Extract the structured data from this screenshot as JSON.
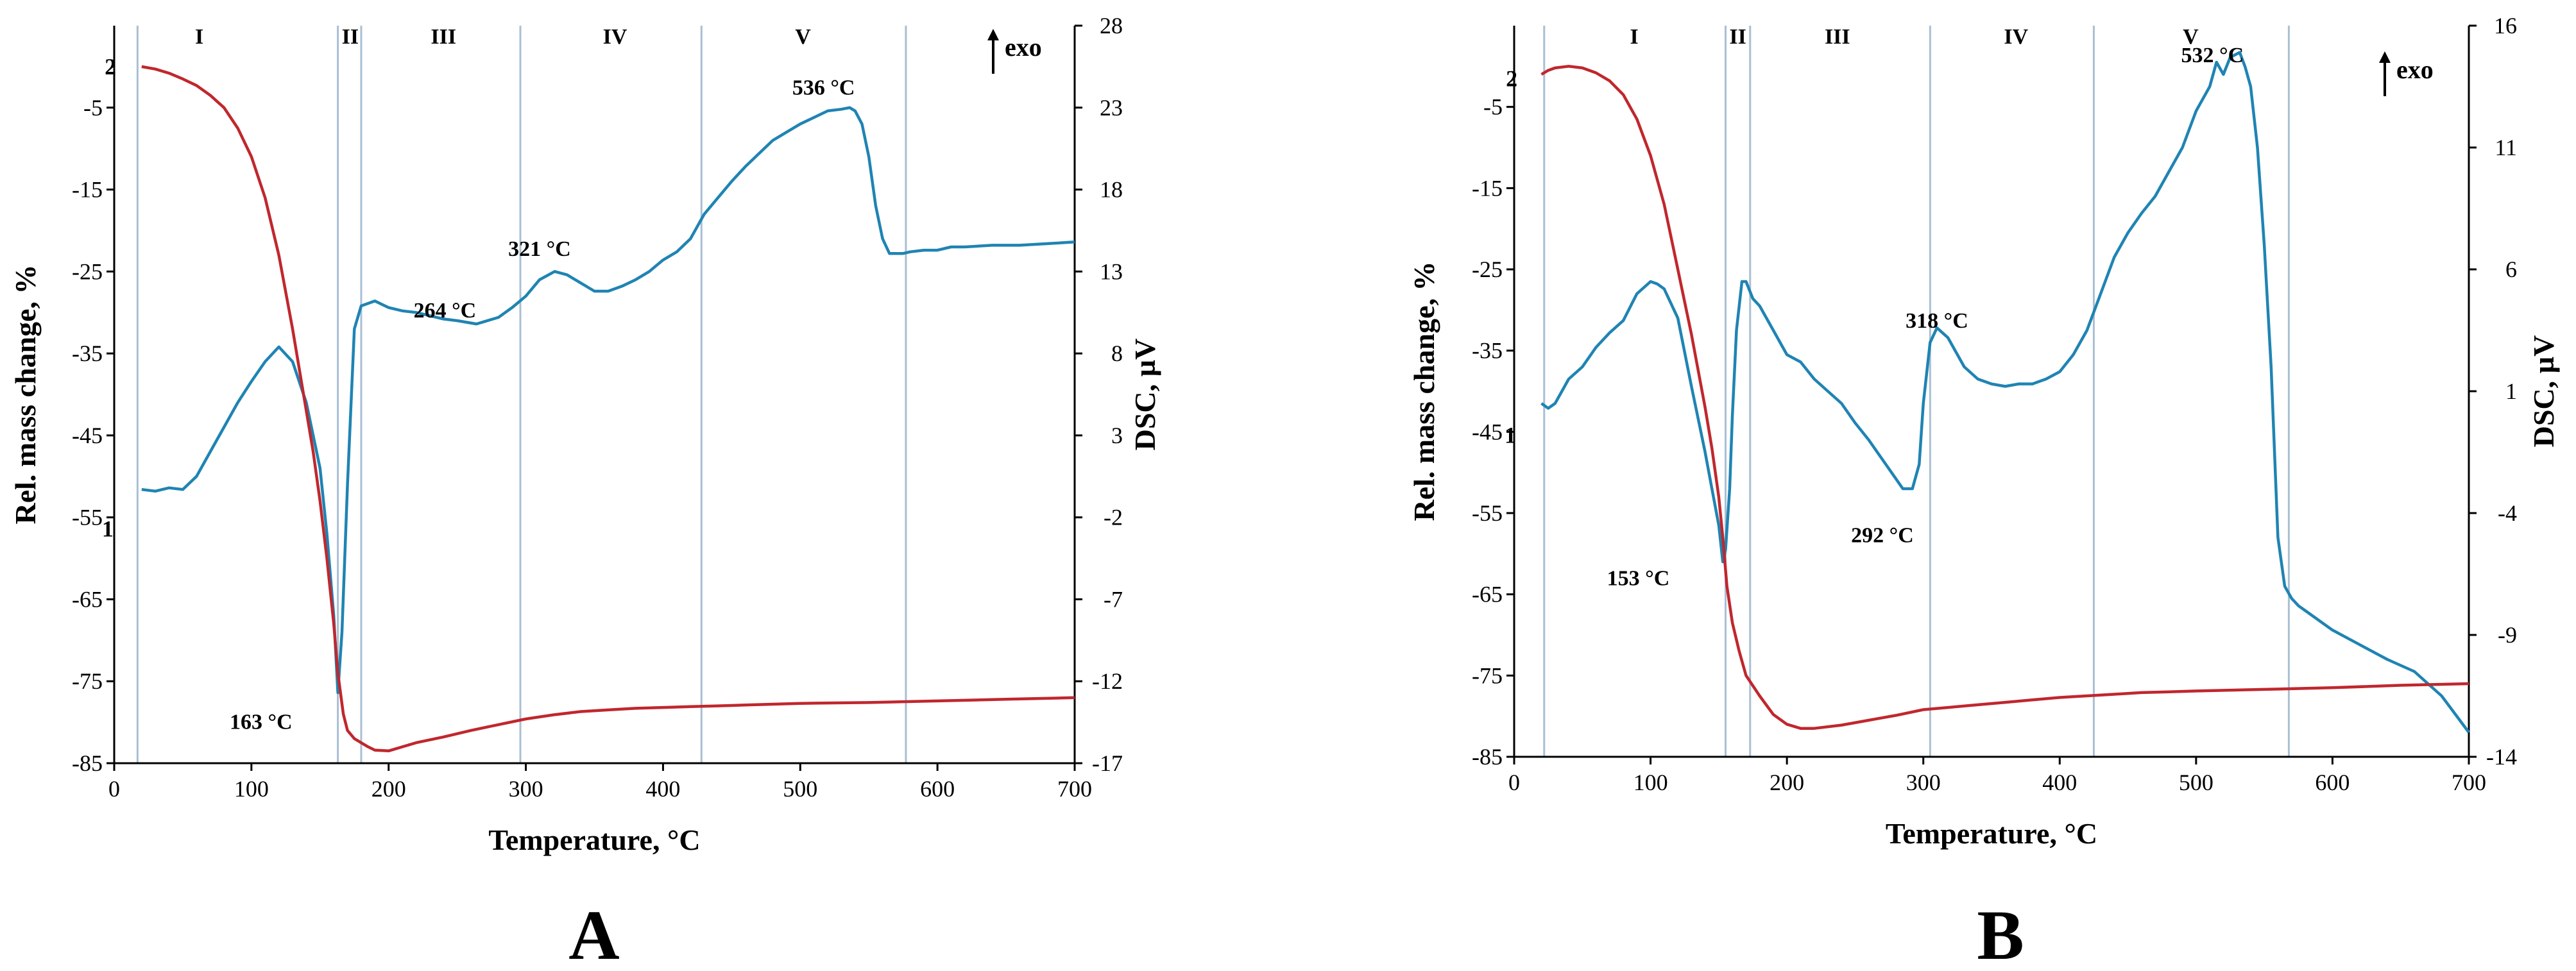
{
  "figure": {
    "panel_labels": [
      "A",
      "B"
    ]
  },
  "colors": {
    "tg": "#c0272d",
    "dsc": "#1f84b3",
    "divider": "#a9bfd4",
    "axis": "#000000"
  },
  "chart_data": [
    {
      "id": "A",
      "type": "line",
      "panel_label": "A",
      "xlabel": "Temperature, °C",
      "ylabel": "Rel. mass change, %",
      "y2label": "DSC, µV",
      "xlim": [
        0,
        700
      ],
      "ylim": [
        -85,
        5
      ],
      "y2lim": [
        -17,
        28
      ],
      "xticks": [
        0,
        100,
        200,
        300,
        400,
        500,
        600,
        700
      ],
      "yticks": [
        -85,
        -75,
        -65,
        -55,
        -45,
        -35,
        -25,
        -15,
        -5
      ],
      "y2ticks": [
        -17,
        -12,
        -7,
        -2,
        3,
        8,
        13,
        18,
        23,
        28
      ],
      "exo_label": "exo",
      "region_boundaries": [
        17,
        163,
        180,
        296,
        428,
        577
      ],
      "regions": [
        {
          "label": "I",
          "x": 62
        },
        {
          "label": "II",
          "x": 172
        },
        {
          "label": "III",
          "x": 240
        },
        {
          "label": "IV",
          "x": 365
        },
        {
          "label": "V",
          "x": 502
        }
      ],
      "series": [
        {
          "name": "1",
          "label": "1",
          "role": "dsc",
          "axis": "y2",
          "label_point": [
            6,
            -2.7
          ],
          "x": [
            20,
            30,
            40,
            50,
            60,
            70,
            80,
            90,
            100,
            110,
            120,
            130,
            140,
            150,
            155,
            160,
            163,
            166,
            170,
            175,
            180,
            190,
            200,
            210,
            220,
            230,
            240,
            250,
            264,
            280,
            290,
            300,
            310,
            321,
            330,
            340,
            350,
            360,
            370,
            380,
            390,
            400,
            410,
            420,
            430,
            440,
            450,
            460,
            470,
            480,
            490,
            500,
            510,
            520,
            530,
            536,
            540,
            545,
            550,
            555,
            560,
            565,
            570,
            575,
            580,
            590,
            600,
            610,
            620,
            640,
            660,
            680,
            700
          ],
          "y": [
            -0.3,
            -0.4,
            -0.2,
            -0.3,
            0.5,
            2.0,
            3.5,
            5.0,
            6.3,
            7.5,
            8.4,
            7.5,
            5.0,
            1.0,
            -3.0,
            -8.0,
            -12.7,
            -9.0,
            0.0,
            9.5,
            10.9,
            11.2,
            10.8,
            10.6,
            10.5,
            10.3,
            10.1,
            10.0,
            9.8,
            10.2,
            10.8,
            11.5,
            12.5,
            13.0,
            12.8,
            12.3,
            11.8,
            11.8,
            12.1,
            12.5,
            13.0,
            13.7,
            14.2,
            15.0,
            16.5,
            17.5,
            18.5,
            19.4,
            20.2,
            21.0,
            21.5,
            22.0,
            22.4,
            22.8,
            22.9,
            23.0,
            22.8,
            22.0,
            20.0,
            17.0,
            15.0,
            14.1,
            14.1,
            14.1,
            14.2,
            14.3,
            14.3,
            14.5,
            14.5,
            14.6,
            14.6,
            14.7,
            14.8
          ]
        },
        {
          "name": "2",
          "label": "2",
          "role": "tg",
          "axis": "y1",
          "label_point": [
            8,
            0
          ],
          "x": [
            20,
            30,
            40,
            50,
            60,
            70,
            80,
            90,
            100,
            110,
            120,
            130,
            140,
            145,
            150,
            155,
            160,
            163,
            167,
            170,
            175,
            180,
            185,
            190,
            200,
            220,
            240,
            260,
            280,
            300,
            320,
            340,
            360,
            380,
            400,
            420,
            440,
            460,
            480,
            500,
            550,
            600,
            650,
            700
          ],
          "y": [
            0,
            -0.3,
            -0.8,
            -1.5,
            -2.3,
            -3.5,
            -5.0,
            -7.5,
            -11.0,
            -16.0,
            -23.0,
            -32.0,
            -42.0,
            -47.0,
            -53.0,
            -60.0,
            -68.0,
            -74.0,
            -79.0,
            -81.0,
            -82.0,
            -82.5,
            -83.0,
            -83.4,
            -83.5,
            -82.5,
            -81.8,
            -81.0,
            -80.3,
            -79.6,
            -79.1,
            -78.7,
            -78.5,
            -78.3,
            -78.2,
            -78.1,
            -78.0,
            -77.9,
            -77.8,
            -77.7,
            -77.6,
            -77.4,
            -77.2,
            -77.0
          ]
        }
      ],
      "annotations": [
        {
          "text": "163 °C",
          "x": 107,
          "y": -80.8
        },
        {
          "text": "264 °C",
          "x": 241,
          "y": -30.6
        },
        {
          "text": "321 °C",
          "x": 310,
          "y": -23.1
        },
        {
          "text": "536 °C",
          "x": 517,
          "y": -3.4
        }
      ]
    },
    {
      "id": "B",
      "type": "line",
      "panel_label": "B",
      "xlabel": "Temperature, °C",
      "ylabel": "Rel. mass change, %",
      "y2label": "DSC, µV",
      "xlim": [
        0,
        700
      ],
      "ylim": [
        -85,
        5
      ],
      "y2lim": [
        -14,
        16
      ],
      "xticks": [
        0,
        100,
        200,
        300,
        400,
        500,
        600,
        700
      ],
      "yticks": [
        -85,
        -75,
        -65,
        -55,
        -45,
        -35,
        -25,
        -15,
        -5
      ],
      "y2ticks": [
        -14,
        -9,
        -4,
        1,
        6,
        11,
        16
      ],
      "exo_label": "exo",
      "region_boundaries": [
        22,
        155,
        173,
        305,
        425,
        568
      ],
      "regions": [
        {
          "label": "I",
          "x": 88
        },
        {
          "label": "II",
          "x": 164
        },
        {
          "label": "III",
          "x": 237
        },
        {
          "label": "IV",
          "x": 368
        },
        {
          "label": "V",
          "x": 496
        }
      ],
      "series": [
        {
          "name": "1",
          "label": "1",
          "role": "dsc",
          "axis": "y2",
          "label_point": [
            8,
            -0.8
          ],
          "x": [
            20,
            25,
            30,
            40,
            50,
            60,
            70,
            80,
            90,
            100,
            105,
            110,
            120,
            130,
            140,
            145,
            150,
            153,
            155,
            158,
            160,
            163,
            167,
            170,
            175,
            180,
            190,
            200,
            210,
            220,
            230,
            240,
            250,
            260,
            270,
            280,
            285,
            292,
            297,
            300,
            305,
            310,
            318,
            325,
            330,
            340,
            350,
            360,
            370,
            380,
            390,
            400,
            410,
            420,
            430,
            440,
            450,
            460,
            470,
            480,
            490,
            500,
            510,
            515,
            520,
            525,
            532,
            536,
            540,
            545,
            550,
            555,
            560,
            565,
            570,
            575,
            580,
            600,
            620,
            640,
            660,
            680,
            700
          ],
          "y": [
            0.5,
            0.3,
            0.5,
            1.5,
            2.0,
            2.8,
            3.4,
            3.9,
            5.0,
            5.5,
            5.4,
            5.2,
            4.0,
            1.2,
            -1.5,
            -3.0,
            -4.5,
            -6.0,
            -5.5,
            -3.0,
            0.0,
            3.5,
            5.5,
            5.5,
            4.8,
            4.5,
            3.5,
            2.5,
            2.2,
            1.5,
            1.0,
            0.5,
            -0.3,
            -1.0,
            -1.8,
            -2.6,
            -3.0,
            -3.0,
            -2.0,
            0.5,
            3.0,
            3.6,
            3.2,
            2.5,
            2.0,
            1.5,
            1.3,
            1.2,
            1.3,
            1.3,
            1.5,
            1.8,
            2.5,
            3.5,
            5.0,
            6.5,
            7.5,
            8.3,
            9.0,
            10.0,
            11.0,
            12.5,
            13.5,
            14.5,
            14.0,
            14.7,
            14.9,
            14.3,
            13.5,
            11.0,
            7.0,
            2.0,
            -5.0,
            -7.0,
            -7.5,
            -7.8,
            -8.0,
            -8.8,
            -9.4,
            -10.0,
            -10.5,
            -11.5,
            -13.0
          ]
        },
        {
          "name": "2",
          "label": "2",
          "role": "tg",
          "axis": "y1",
          "label_point": [
            9,
            -1.5
          ],
          "x": [
            20,
            25,
            30,
            40,
            50,
            60,
            70,
            80,
            90,
            100,
            110,
            120,
            130,
            140,
            145,
            150,
            153,
            156,
            160,
            165,
            170,
            180,
            190,
            200,
            210,
            220,
            240,
            260,
            280,
            300,
            320,
            340,
            360,
            380,
            400,
            420,
            440,
            460,
            480,
            500,
            550,
            600,
            650,
            700
          ],
          "y": [
            -1.0,
            -0.5,
            -0.2,
            0.0,
            -0.2,
            -0.8,
            -1.8,
            -3.5,
            -6.5,
            -11.0,
            -17.0,
            -25.0,
            -33.0,
            -42.0,
            -47.0,
            -53.0,
            -58.0,
            -64.0,
            -68.5,
            -72.0,
            -75.0,
            -77.5,
            -79.8,
            -81.0,
            -81.5,
            -81.5,
            -81.1,
            -80.5,
            -79.9,
            -79.2,
            -78.9,
            -78.6,
            -78.3,
            -78.0,
            -77.7,
            -77.5,
            -77.3,
            -77.1,
            -77.0,
            -76.9,
            -76.7,
            -76.5,
            -76.2,
            -76.0
          ]
        }
      ],
      "annotations": [
        {
          "text": "153 °C",
          "x": 91,
          "y": -63.9
        },
        {
          "text": "292 °C",
          "x": 270,
          "y": -58.6
        },
        {
          "text": "318 °C",
          "x": 310,
          "y": -32.2
        },
        {
          "text": "532 °C",
          "x": 512,
          "y": 0.5
        }
      ]
    }
  ]
}
